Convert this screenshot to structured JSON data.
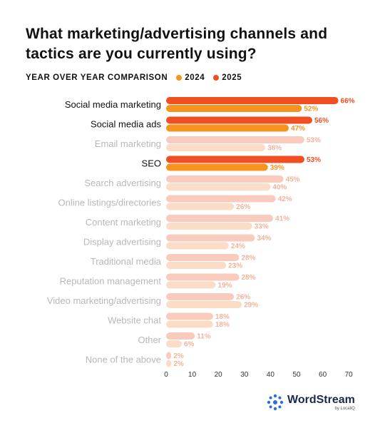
{
  "title": "What marketing/advertising channels and tactics are you currently using?",
  "subtitle": "YEAR OVER YEAR COMPARISON",
  "legend": [
    {
      "label": "2024",
      "color": "#f7941d"
    },
    {
      "label": "2025",
      "color": "#f04e23"
    }
  ],
  "brand": {
    "name": "WordStream",
    "sub": "by LocaliQ"
  },
  "colors": {
    "highlight_2025": "#f04e23",
    "highlight_2024": "#f7941d",
    "faded_2025": "#f8cbbd",
    "faded_2024": "#fbdcc6",
    "faded_label": "#b8b8b8",
    "faded_value": "#f3b39d"
  },
  "chart_data": {
    "type": "bar",
    "orientation": "horizontal",
    "categories": [
      "Social media marketing",
      "Social media ads",
      "Email marketing",
      "SEO",
      "Search advertising",
      "Online listings/directories",
      "Content marketing",
      "Display advertising",
      "Traditional media",
      "Reputation management",
      "Video marketing/advertising",
      "Website chat",
      "Other",
      "None of the above"
    ],
    "highlighted": [
      true,
      true,
      false,
      true,
      false,
      false,
      false,
      false,
      false,
      false,
      false,
      false,
      false,
      false
    ],
    "series": [
      {
        "name": "2025",
        "values": [
          66,
          56,
          53,
          53,
          45,
          42,
          41,
          34,
          28,
          28,
          26,
          18,
          11,
          2
        ]
      },
      {
        "name": "2024",
        "values": [
          52,
          47,
          38,
          39,
          40,
          26,
          33,
          24,
          23,
          19,
          29,
          18,
          6,
          2
        ]
      }
    ],
    "value_suffix": "%",
    "xlim": [
      0,
      70
    ],
    "xticks": [
      0,
      10,
      20,
      30,
      40,
      50,
      60,
      70
    ],
    "grid": false,
    "legend_position": "top"
  }
}
